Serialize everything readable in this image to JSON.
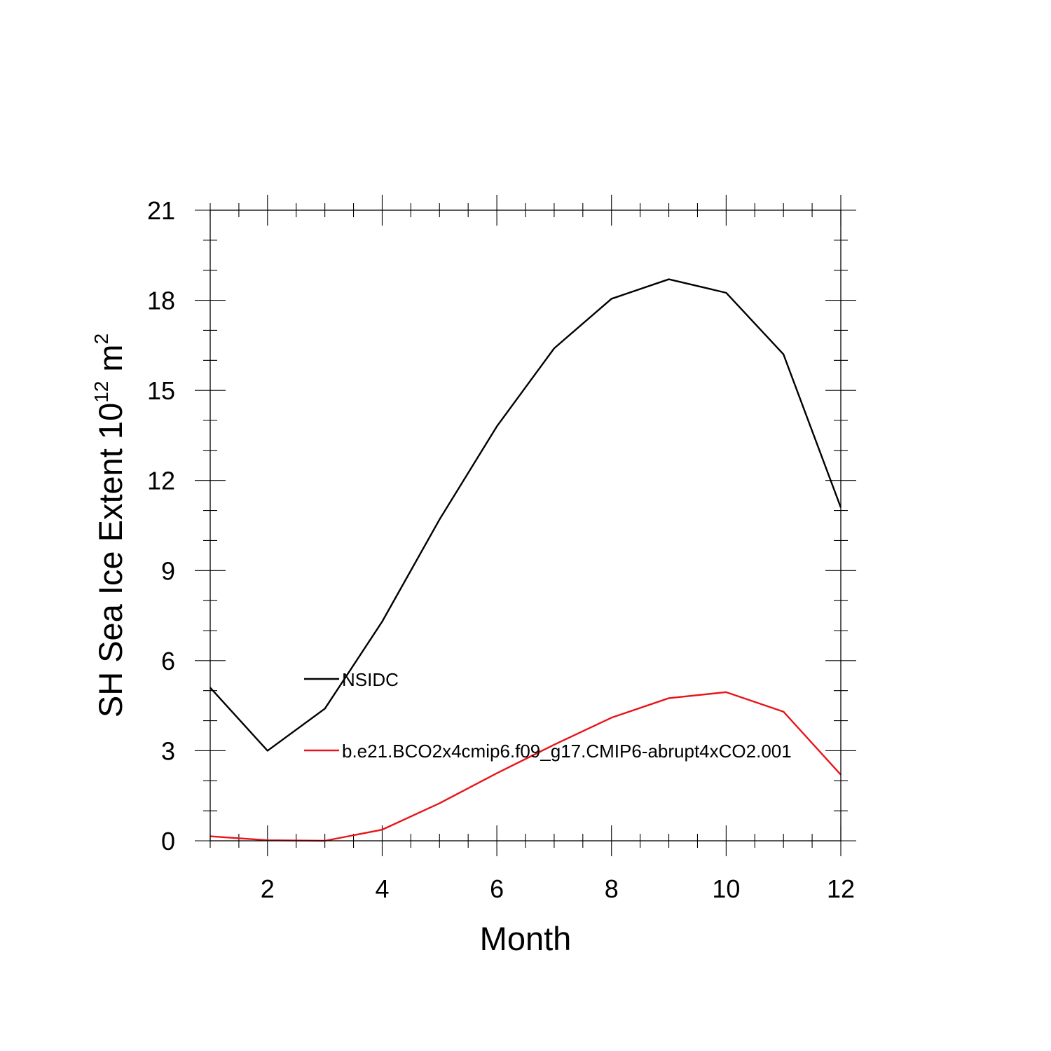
{
  "chart_data": {
    "type": "line",
    "title": "",
    "xlabel": "Month",
    "ylabel": {
      "text": "SH Sea Ice Extent 10",
      "exponent": "12",
      "unit": "m",
      "unit_exponent": "2"
    },
    "xlim": [
      1,
      12
    ],
    "ylim": [
      0,
      21
    ],
    "xticks": [
      2,
      4,
      6,
      8,
      10,
      12
    ],
    "yticks": [
      0,
      3,
      6,
      9,
      12,
      15,
      18,
      21
    ],
    "x": [
      1,
      2,
      3,
      4,
      5,
      6,
      7,
      8,
      9,
      10,
      11,
      12
    ],
    "series": [
      {
        "name": "NSIDC",
        "color": "#000000",
        "values": [
          5.1,
          3.0,
          4.4,
          7.3,
          10.7,
          13.8,
          16.4,
          18.05,
          18.7,
          18.25,
          16.2,
          11.1
        ]
      },
      {
        "name": "b.e21.BCO2x4cmip6.f09_g17.CMIP6-abrupt4xCO2.001",
        "color": "#e8141a",
        "values": [
          0.15,
          0.02,
          0.0,
          0.37,
          1.25,
          2.25,
          3.2,
          4.1,
          4.75,
          4.95,
          4.3,
          2.2
        ]
      }
    ],
    "legend_position": "inside-lower-left"
  }
}
